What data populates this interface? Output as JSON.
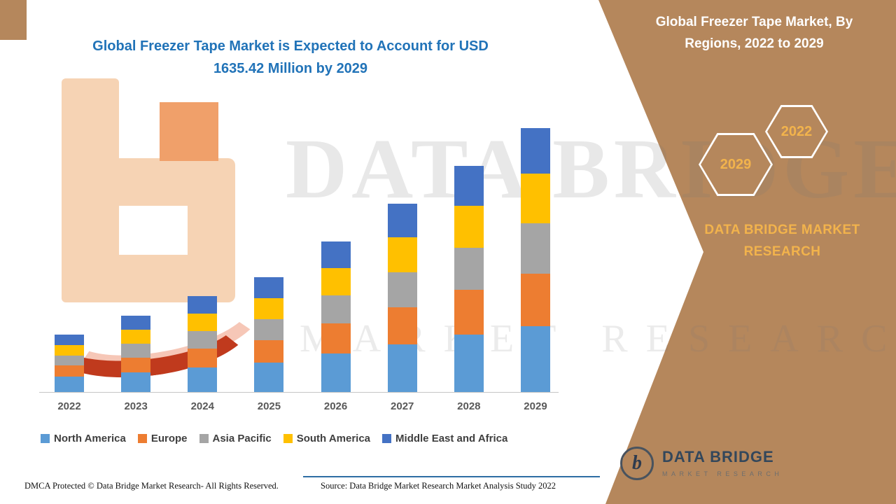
{
  "page": {
    "title_line1": "Global Freezer Tape Market is Expected to Account for USD",
    "title_line2": "1635.42 Million by 2029"
  },
  "sidebar": {
    "title_line1": "Global Freezer Tape Market, By",
    "title_line2": "Regions, 2022 to 2029",
    "badge_2029": "2029",
    "badge_2022": "2022",
    "brand_line1": "DATA BRIDGE MARKET",
    "brand_line2": "RESEARCH",
    "bg_color": "#b5875c",
    "accent_gold": "#f2b34c"
  },
  "watermark": {
    "line1": "DATA BRIDGE",
    "line2": "MARKET RESEARCH"
  },
  "logo": {
    "mark": "b",
    "name": "DATA BRIDGE",
    "subtext": "MARKET RESEARCH"
  },
  "footer": {
    "left": "DMCA Protected © Data Bridge Market Research- All Rights Reserved.",
    "source": "Source: Data Bridge Market Research Market Analysis Study 2022"
  },
  "chart_data": {
    "type": "bar",
    "stacked": true,
    "title": "Global Freezer Tape Market is Expected to Account for USD 1635.42 Million by 2029",
    "xlabel": "",
    "ylabel": "",
    "unit": "USD Million",
    "ylim": [
      0,
      1700
    ],
    "grid": false,
    "legend_position": "bottom",
    "categories": [
      "2022",
      "2023",
      "2024",
      "2025",
      "2026",
      "2027",
      "2028",
      "2029"
    ],
    "series": [
      {
        "name": "North America",
        "color": "#5b9bd5",
        "values": [
          95,
          122,
          152,
          182,
          239,
          295,
          356,
          410
        ]
      },
      {
        "name": "Europe",
        "color": "#ed7d31",
        "values": [
          70,
          92,
          117,
          140,
          187,
          231,
          278,
          325
        ]
      },
      {
        "name": "Asia Pacific",
        "color": "#a5a5a5",
        "values": [
          60,
          86,
          108,
          130,
          174,
          217,
          261,
          312
        ]
      },
      {
        "name": "South America",
        "color": "#ffc000",
        "values": [
          65,
          87,
          108,
          130,
          169,
          216,
          260,
          305.42
        ]
      },
      {
        "name": "Middle East and Africa",
        "color": "#4472c4",
        "values": [
          65,
          87,
          109,
          130,
          165,
          208,
          247,
          283
        ]
      }
    ],
    "totals_estimated": [
      355,
      474,
      594,
      712,
      934,
      1167,
      1402,
      1635.42
    ],
    "annotation": "2029 total = USD 1635.42 Million (values other than the labeled 2029 total are estimated from bar heights)"
  }
}
